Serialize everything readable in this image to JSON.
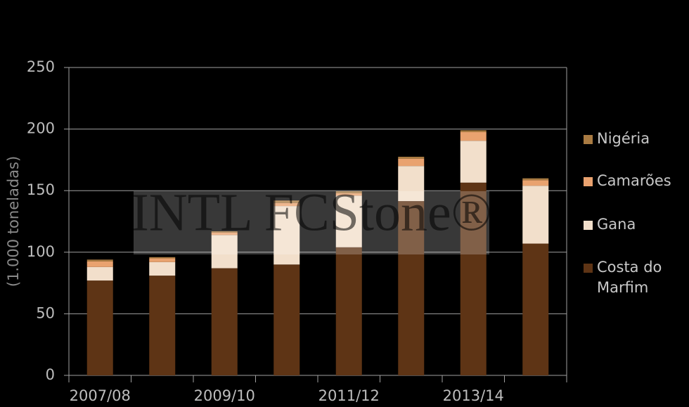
{
  "chart_data": {
    "type": "stacked_bar",
    "y_label": "(1.000 toneladas)",
    "watermark": "INTL FCStone®",
    "categories": [
      "2007/08",
      null,
      "2009/10",
      null,
      "2011/12",
      null,
      "2013/14",
      null
    ],
    "series": [
      {
        "name": "Costa do Marfim",
        "color": "#5e3415",
        "values": [
          77,
          81,
          87,
          90,
          104,
          141.5,
          156.5,
          107
        ]
      },
      {
        "name": "Gana",
        "color": "#f2dfcb",
        "values": [
          11,
          11,
          27,
          47.5,
          42,
          28.5,
          34,
          47
        ]
      },
      {
        "name": "Camarões",
        "color": "#e9a26f",
        "values": [
          4.5,
          3,
          2,
          2.5,
          2,
          6,
          7,
          4.5
        ]
      },
      {
        "name": "Nigéria",
        "color": "#a97b42",
        "values": [
          1.5,
          1,
          1,
          2,
          1.5,
          1.5,
          1.5,
          1.5
        ]
      }
    ],
    "ylim": [
      0,
      250
    ],
    "yticks": [
      0,
      50,
      100,
      150,
      200,
      250
    ],
    "grid": true
  }
}
